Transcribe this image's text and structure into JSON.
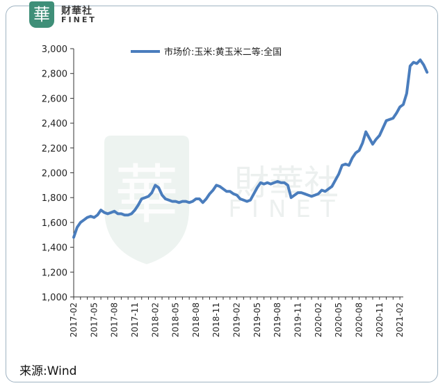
{
  "logo": {
    "glyph": "華",
    "name_cn": "财華社",
    "name_en": "FINET"
  },
  "watermark": {
    "glyph": "華",
    "name_cn": "財華社",
    "name_en": "FINET"
  },
  "chart_data": {
    "type": "line",
    "title": "",
    "xlabel": "",
    "ylabel": "",
    "ylim": [
      1000,
      3000
    ],
    "yticks": [
      "1,000",
      "1,200",
      "1,400",
      "1,600",
      "1,800",
      "2,000",
      "2,200",
      "2,400",
      "2,600",
      "2,800",
      "3,000"
    ],
    "x_tick_labels": [
      "2017-02",
      "2017-05",
      "2017-08",
      "2017-11",
      "2018-02",
      "2018-05",
      "2018-08",
      "2018-11",
      "2019-02",
      "2019-05",
      "2019-08",
      "2019-11",
      "2020-02",
      "2020-05",
      "2020-08",
      "2020-11",
      "2021-02"
    ],
    "legend_position": "top",
    "grid": false,
    "series": [
      {
        "name": "市场价:玉米:黄玉米二等:全国",
        "color": "#4a7dbd",
        "points": [
          [
            0,
            1480
          ],
          [
            0.5,
            1560
          ],
          [
            1,
            1600
          ],
          [
            1.5,
            1620
          ],
          [
            2,
            1640
          ],
          [
            2.5,
            1650
          ],
          [
            3,
            1640
          ],
          [
            3.5,
            1660
          ],
          [
            4,
            1700
          ],
          [
            4.5,
            1680
          ],
          [
            5,
            1670
          ],
          [
            5.5,
            1680
          ],
          [
            6,
            1690
          ],
          [
            6.5,
            1670
          ],
          [
            7,
            1670
          ],
          [
            7.5,
            1660
          ],
          [
            8,
            1660
          ],
          [
            8.5,
            1670
          ],
          [
            9,
            1700
          ],
          [
            9.5,
            1740
          ],
          [
            10,
            1790
          ],
          [
            10.5,
            1800
          ],
          [
            11,
            1810
          ],
          [
            11.5,
            1840
          ],
          [
            12,
            1900
          ],
          [
            12.5,
            1880
          ],
          [
            13,
            1820
          ],
          [
            13.5,
            1790
          ],
          [
            14,
            1780
          ],
          [
            14.5,
            1770
          ],
          [
            15,
            1770
          ],
          [
            15.5,
            1760
          ],
          [
            16,
            1770
          ],
          [
            16.5,
            1770
          ],
          [
            17,
            1760
          ],
          [
            17.5,
            1770
          ],
          [
            18,
            1790
          ],
          [
            18.5,
            1790
          ],
          [
            19,
            1760
          ],
          [
            19.5,
            1790
          ],
          [
            20,
            1830
          ],
          [
            20.5,
            1860
          ],
          [
            21,
            1900
          ],
          [
            21.5,
            1890
          ],
          [
            22,
            1870
          ],
          [
            22.5,
            1850
          ],
          [
            23,
            1850
          ],
          [
            23.5,
            1830
          ],
          [
            24,
            1820
          ],
          [
            24.5,
            1790
          ],
          [
            25,
            1780
          ],
          [
            25.5,
            1770
          ],
          [
            26,
            1780
          ],
          [
            26.5,
            1830
          ],
          [
            27,
            1880
          ],
          [
            27.5,
            1920
          ],
          [
            28,
            1910
          ],
          [
            28.5,
            1920
          ],
          [
            29,
            1910
          ],
          [
            29.5,
            1920
          ],
          [
            30,
            1930
          ],
          [
            30.5,
            1920
          ],
          [
            31,
            1920
          ],
          [
            31.5,
            1900
          ],
          [
            32,
            1800
          ],
          [
            32.5,
            1820
          ],
          [
            33,
            1840
          ],
          [
            33.5,
            1840
          ],
          [
            34,
            1830
          ],
          [
            34.5,
            1820
          ],
          [
            35,
            1810
          ],
          [
            35.5,
            1820
          ],
          [
            36,
            1830
          ],
          [
            36.5,
            1860
          ],
          [
            37,
            1850
          ],
          [
            37.5,
            1870
          ],
          [
            38,
            1890
          ],
          [
            38.5,
            1940
          ],
          [
            39,
            1990
          ],
          [
            39.5,
            2060
          ],
          [
            40,
            2070
          ],
          [
            40.5,
            2060
          ],
          [
            41,
            2120
          ],
          [
            41.5,
            2160
          ],
          [
            42,
            2180
          ],
          [
            42.5,
            2240
          ],
          [
            43,
            2330
          ],
          [
            43.5,
            2280
          ],
          [
            44,
            2230
          ],
          [
            44.5,
            2270
          ],
          [
            45,
            2300
          ],
          [
            45.5,
            2360
          ],
          [
            46,
            2420
          ],
          [
            46.5,
            2430
          ],
          [
            47,
            2440
          ],
          [
            47.5,
            2480
          ],
          [
            48,
            2530
          ],
          [
            48.5,
            2550
          ],
          [
            49,
            2640
          ],
          [
            49.5,
            2860
          ],
          [
            50,
            2890
          ],
          [
            50.5,
            2880
          ],
          [
            51,
            2910
          ],
          [
            51.5,
            2870
          ],
          [
            52,
            2810
          ]
        ]
      }
    ]
  },
  "source": "来源:Wind"
}
